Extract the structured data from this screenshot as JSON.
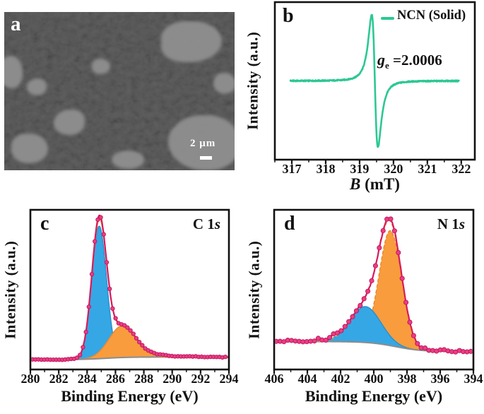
{
  "figure": {
    "background": "#ffffff",
    "text_color": "#111111"
  },
  "panels": {
    "a": {
      "label": "a",
      "type": "SEM micrograph",
      "scale_bar": "2 μm"
    },
    "b": {
      "label": "b",
      "legend": "NCN (Solid)",
      "annotation": {
        "symbol": "g",
        "subscript": "e",
        "value": " =2.0006"
      },
      "ylabel": "Intensity (a.u.)",
      "xlabel": {
        "italic": "B",
        "rest": " (mT)"
      }
    },
    "c": {
      "label": "c",
      "title": {
        "prefix": "C 1",
        "italic": "s"
      },
      "ylabel": "Intensity (a.u.)",
      "xlabel": "Binding Energy (eV)"
    },
    "d": {
      "label": "d",
      "title": {
        "prefix": "N 1",
        "italic": "s"
      },
      "ylabel": "Intensity (a.u.)",
      "xlabel": "Binding Energy (eV)"
    }
  },
  "chart_data": [
    {
      "id": "b",
      "type": "line",
      "description": "EPR first-derivative spectrum",
      "legend": [
        "NCN (Solid)"
      ],
      "g_factor": 2.0006,
      "xlabel": "B (mT)",
      "ylabel": "Intensity (a.u.)",
      "xlim": [
        316.5,
        322.4
      ],
      "xticks": [
        317,
        318,
        319,
        320,
        321,
        322
      ],
      "minor_tick_step": 0.5,
      "line_color": "#2cc893",
      "series": [
        {
          "name": "NCN (Solid)",
          "shape": "lorentzian-derivative",
          "center_mT": 319.45,
          "width_mT": 0.16,
          "peak_frac": 0.42,
          "baseline_frac": 0.5,
          "x_start": 316.95,
          "x_end": 321.95,
          "noise_frac": 0.004
        }
      ]
    },
    {
      "id": "c",
      "type": "area",
      "description": "XPS C 1s spectrum with fitted components",
      "title": "C 1s",
      "xlabel": "Binding Energy (eV)",
      "ylabel": "Intensity (a.u.)",
      "xlim": [
        280,
        294
      ],
      "reversed": false,
      "xticks": [
        280,
        282,
        284,
        286,
        288,
        290,
        292,
        294
      ],
      "minor_tick_step": 1,
      "baseline": {
        "left_frac": 0.062,
        "right_frac": 0.078,
        "step_center": 285.3,
        "step_width": 0.8,
        "color": "#8c8c8c"
      },
      "components": [
        {
          "center": 284.85,
          "sigma": 0.52,
          "height_frac": 0.83,
          "fill": "#35a7e5",
          "stroke": "#2b8fc9",
          "dashed": false
        },
        {
          "center": 286.5,
          "sigma": 0.95,
          "height_frac": 0.2,
          "fill": "#f89c3e",
          "stroke": "#e8882f",
          "dashed": false
        }
      ],
      "envelope_color": "#f59a3c",
      "envelope_dashed": false,
      "data_line_color": "#d81b5b",
      "marker_fill": "#ec3c86",
      "marker_stroke": "#ba1756",
      "noise_frac": 0.004,
      "peak_excess": {
        "amount": 0.02,
        "center": 284.85,
        "sigma": 0.4
      },
      "bumps": [
        [
          288.6,
          0.012,
          0.5
        ],
        [
          289.6,
          0.008,
          0.4
        ],
        [
          291.2,
          0.005,
          0.5
        ]
      ]
    },
    {
      "id": "d",
      "type": "area",
      "description": "XPS N 1s spectrum with fitted components",
      "title": "N 1s",
      "xlabel": "Binding Energy (eV)",
      "ylabel": "Intensity (a.u.)",
      "xlim": [
        406,
        394
      ],
      "reversed": true,
      "xticks": [
        406,
        404,
        402,
        400,
        398,
        396,
        394
      ],
      "minor_tick_step": 1,
      "baseline": {
        "left_frac": 0.175,
        "right_frac": 0.112,
        "step_center": 398.7,
        "step_width": 0.8,
        "color": "#8c8c8c"
      },
      "components": [
        {
          "center": 399.0,
          "sigma": 0.68,
          "height_frac": 0.72,
          "fill": "#f89c3e",
          "stroke": "#e8882f",
          "dashed": true
        },
        {
          "center": 400.5,
          "sigma": 0.92,
          "height_frac": 0.225,
          "fill": "#35a7e5",
          "stroke": "#2b8fc9",
          "dashed": false
        }
      ],
      "envelope_color": "#f59a3c",
      "envelope_dashed": true,
      "data_line_color": "#d81b5b",
      "marker_fill": "#ec3c86",
      "marker_stroke": "#ba1756",
      "noise_frac": 0.006,
      "peak_excess": {
        "amount": 0.015,
        "center": 399.0,
        "sigma": 0.5
      },
      "bumps": [
        [
          405.1,
          0.012,
          0.12
        ],
        [
          403.3,
          0.02,
          0.15
        ],
        [
          402.4,
          0.024,
          0.2
        ],
        [
          396.9,
          0.012,
          0.12
        ],
        [
          395.9,
          0.013,
          0.12
        ],
        [
          394.8,
          0.012,
          0.12
        ]
      ]
    }
  ]
}
